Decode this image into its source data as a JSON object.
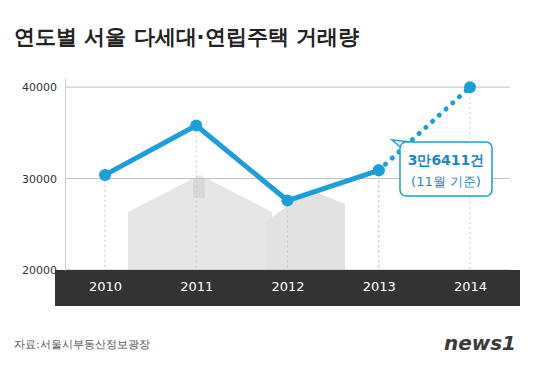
{
  "chart_data": {
    "type": "line",
    "title": "연도별 서울 다세대·연립주택 거래량",
    "categories": [
      "2010",
      "2011",
      "2012",
      "2013",
      "2014"
    ],
    "series": [
      {
        "color": "#1a9fdb",
        "values": [
          30400,
          35800,
          27600,
          30900,
          null
        ],
        "line_style": "solid",
        "marker": "circle"
      },
      {
        "color": "#1a9fdb",
        "values": [
          null,
          null,
          null,
          30900,
          40000
        ],
        "line_style": "dotted",
        "marker": "circle"
      }
    ],
    "ylim": [
      20000,
      41000
    ],
    "yticks": [
      20000,
      30000,
      40000
    ],
    "grid": true,
    "annotations": [
      "3만6411건",
      "(11월 기준)"
    ],
    "source": "자료:서울시부동산정보광장",
    "logo": "news1"
  }
}
